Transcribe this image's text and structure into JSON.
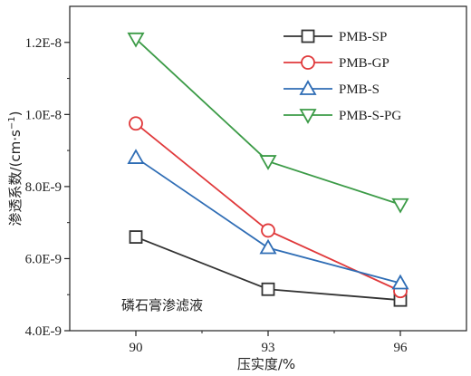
{
  "chart_data": {
    "type": "line",
    "title": "",
    "xlabel": "压实度/%",
    "ylabel_prefix": "渗透系数/(cm·s",
    "ylabel_sup": "−1",
    "ylabel_suffix": ")",
    "x": [
      90,
      93,
      96
    ],
    "x_tick_labels": [
      "90",
      "93",
      "96"
    ],
    "xlim": [
      88.5,
      97.5
    ],
    "ylim": [
      4e-09,
      1.3e-08
    ],
    "y_ticks": [
      4e-09,
      6e-09,
      8e-09,
      1e-08,
      1.2e-08
    ],
    "y_tick_labels": [
      "4.0E-9",
      "6.0E-9",
      "8.0E-9",
      "1.0E-8",
      "1.2E-8"
    ],
    "grid": false,
    "legend_position": "top-right",
    "annotation": "磷石膏渗滤液",
    "series": [
      {
        "name": "PMB-SP",
        "color": "#333333",
        "marker": "square",
        "values": [
          6.6e-09,
          5.15e-09,
          4.85e-09
        ]
      },
      {
        "name": "PMB-GP",
        "color": "#e0393b",
        "marker": "circle",
        "values": [
          9.75e-09,
          6.78e-09,
          5.1e-09
        ]
      },
      {
        "name": "PMB-S",
        "color": "#2f6db5",
        "marker": "triangle-up",
        "values": [
          8.8e-09,
          6.3e-09,
          5.32e-09
        ]
      },
      {
        "name": "PMB-S-PG",
        "color": "#3c9b47",
        "marker": "triangle-down",
        "values": [
          1.21e-08,
          8.7e-09,
          7.5e-09
        ]
      }
    ]
  }
}
